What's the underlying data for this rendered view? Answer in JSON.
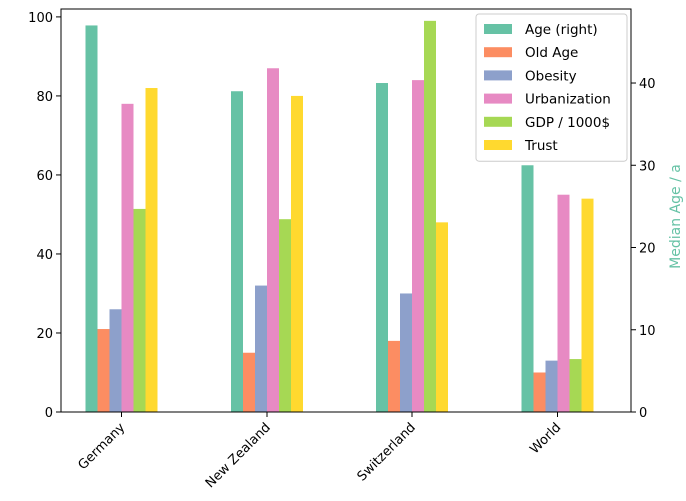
{
  "chart_data": {
    "type": "bar",
    "categories": [
      "Germany",
      "New Zealand",
      "Switzerland",
      "World"
    ],
    "series": [
      {
        "name": "Age (right)",
        "axis": "right",
        "color": "#66c2a5",
        "values": [
          47,
          39,
          40,
          30
        ]
      },
      {
        "name": "Old Age",
        "axis": "left",
        "color": "#fc8d62",
        "values": [
          21,
          15,
          18,
          10
        ]
      },
      {
        "name": "Obesity",
        "axis": "left",
        "color": "#8da0cb",
        "values": [
          26,
          32,
          30,
          13
        ]
      },
      {
        "name": "Urbanization",
        "axis": "left",
        "color": "#e78ac3",
        "values": [
          78,
          87,
          84,
          55
        ]
      },
      {
        "name": "GDP / 1000$",
        "axis": "left",
        "color": "#a6d854",
        "values": [
          51.4,
          48.8,
          99,
          13.4
        ]
      },
      {
        "name": "Trust",
        "axis": "left",
        "color": "#ffd92f",
        "values": [
          82,
          80,
          48,
          54
        ]
      }
    ],
    "ylim_left": [
      0,
      102
    ],
    "yticks_left": [
      0,
      20,
      40,
      60,
      80,
      100
    ],
    "ylim_right": [
      0,
      49
    ],
    "yticks_right": [
      0,
      10,
      20,
      30,
      40
    ],
    "ylabel_right": "Median Age / a",
    "ylabel_right_color": "#66c2a5",
    "xlabel": "",
    "ylabel": "",
    "title": "",
    "grid": false,
    "legend_position": "top-right"
  }
}
